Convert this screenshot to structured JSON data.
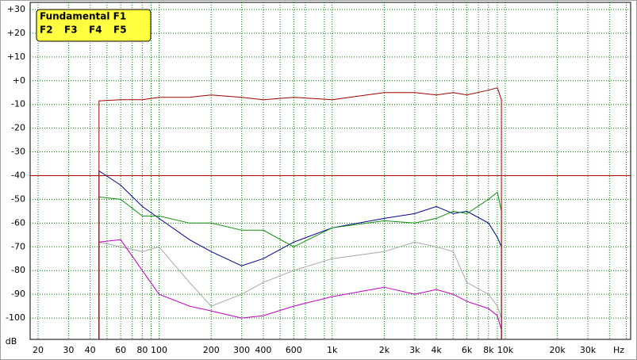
{
  "chart_data": {
    "type": "line",
    "x_label": "Hz",
    "y_label": "dB",
    "x_log": true,
    "grid": true,
    "grid_color": "#008000",
    "xlim": [
      18,
      53000
    ],
    "ylim": [
      -109,
      33
    ],
    "xticks": [
      20,
      30,
      40,
      60,
      80,
      100,
      200,
      300,
      400,
      600,
      {
        "value": 1000,
        "label": "1k"
      },
      {
        "value": 2000,
        "label": "2k"
      },
      {
        "value": 3000,
        "label": "3k"
      },
      {
        "value": 4000,
        "label": "4k"
      },
      {
        "value": 6000,
        "label": "6k"
      },
      {
        "value": 8000,
        "label": "8k"
      },
      {
        "value": 10000,
        "label": "10k"
      },
      {
        "value": 20000,
        "label": "20k"
      },
      {
        "value": 30000,
        "label": "30k"
      }
    ],
    "xminorticks": [
      50,
      70,
      90,
      500,
      700,
      900,
      5000,
      7000,
      9000,
      40000,
      50000
    ],
    "yticks": [
      {
        "value": 30,
        "label": "+30"
      },
      {
        "value": 20,
        "label": "+20"
      },
      {
        "value": 10,
        "label": "+10"
      },
      {
        "value": 0,
        "label": "+0"
      },
      -10,
      -20,
      -30,
      -40,
      -50,
      -60,
      -70,
      -80,
      -90,
      -100
    ],
    "reference_line": {
      "value": -40,
      "color": "#b00000"
    },
    "legend_position": "upper left",
    "legend_color": "#ffff40",
    "x": [
      45,
      45,
      60,
      80,
      100,
      150,
      200,
      300,
      400,
      600,
      1000,
      2000,
      3000,
      4000,
      5000,
      6000,
      8000,
      9000,
      9500,
      9500
    ],
    "series": [
      {
        "name": "Fundamental F1",
        "color": "#a00000",
        "values": [
          -109,
          -8.5,
          -8,
          -8,
          -7,
          -7,
          -6,
          -7,
          -8,
          -7,
          -8,
          -5,
          -5,
          -6,
          -5,
          -6,
          -4,
          -3,
          -8,
          -109
        ]
      },
      {
        "name": "F2",
        "color": "#109010",
        "values": [
          -109,
          -49,
          -50,
          -57,
          -57,
          -60,
          -60,
          -63,
          -63,
          -70,
          -62,
          -59,
          -60,
          -58,
          -55,
          -56,
          -50,
          -47,
          -55,
          -109
        ]
      },
      {
        "name": "F3",
        "color": "#000090",
        "values": [
          -109,
          -38,
          -44,
          -53,
          -58,
          -67,
          -72,
          -78,
          -75,
          -68,
          -62,
          -58,
          -56,
          -53,
          -56,
          -55,
          -60,
          -66,
          -70,
          -109
        ]
      },
      {
        "name": "F4",
        "color": "#c000c0",
        "values": [
          -109,
          -68,
          -67,
          -80,
          -90,
          -95,
          -97,
          -100,
          -99,
          -95,
          -91,
          -87,
          -90,
          -88,
          -90,
          -93,
          -96,
          -99,
          -105,
          -109
        ]
      },
      {
        "name": "F5",
        "color": "#a8a8a8",
        "values": [
          -109,
          -68,
          -70,
          -72,
          -70,
          -85,
          -95,
          -90,
          -85,
          -80,
          -75,
          -72,
          -68,
          -70,
          -72,
          -85,
          -90,
          -95,
          -100,
          -109
        ]
      }
    ]
  }
}
